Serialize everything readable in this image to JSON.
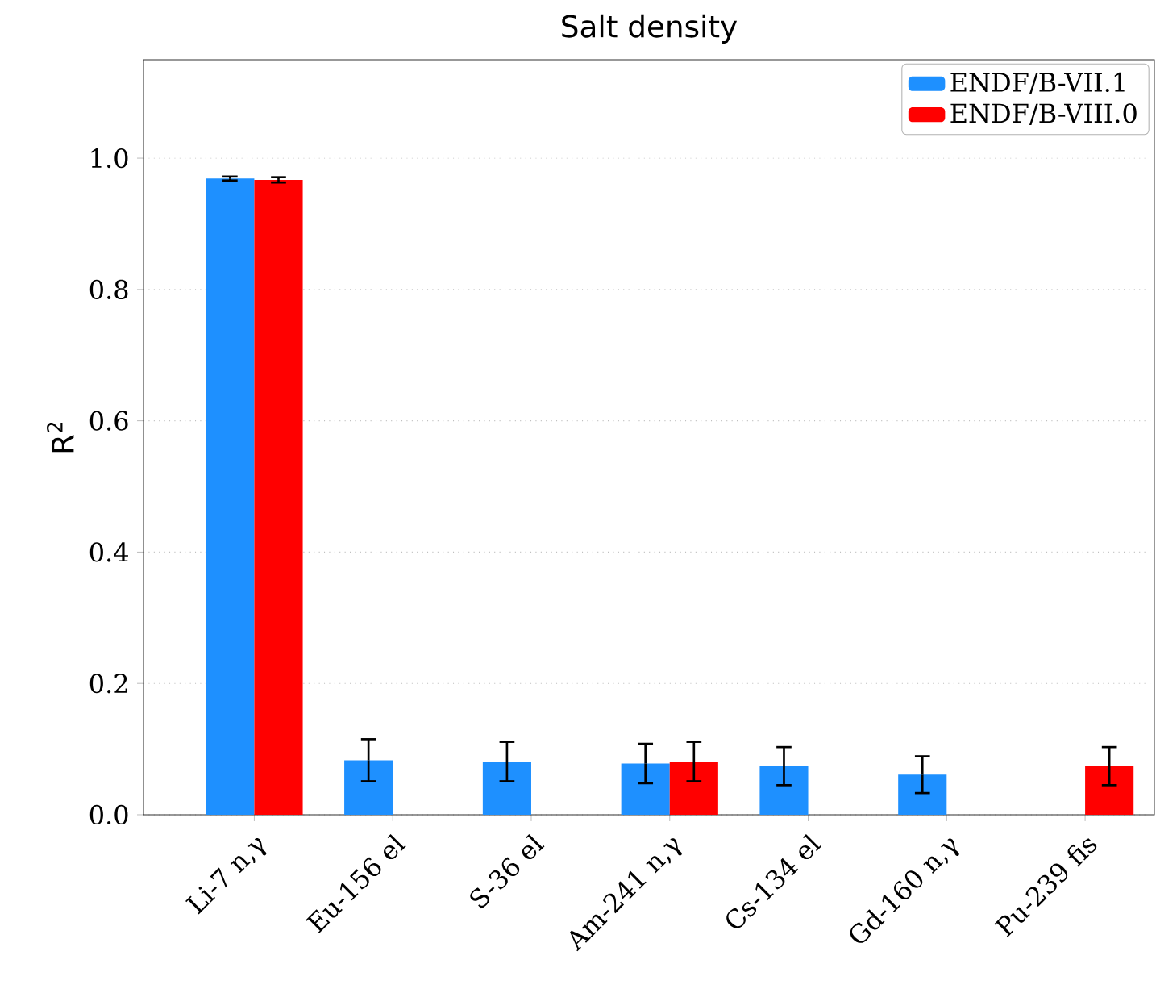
{
  "chart_data": {
    "type": "bar",
    "title": "Salt density",
    "ylabel": "R$^{2}$",
    "categories": [
      "Li-7 n,γ",
      "Eu-156 el",
      "S-36 el",
      "Am-241 n,γ",
      "Cs-134 el",
      "Gd-160 n,γ",
      "Pu-239 fis"
    ],
    "series": [
      {
        "name": "ENDF/B-VII.1",
        "color": "#1e90ff",
        "values": [
          0.969,
          0.083,
          0.081,
          0.078,
          0.074,
          0.061,
          0
        ],
        "errors": [
          0.003,
          0.032,
          0.03,
          0.03,
          0.029,
          0.028,
          null
        ]
      },
      {
        "name": "ENDF/B-VIII.0",
        "color": "#ff0000",
        "values": [
          0.967,
          0,
          0,
          0.081,
          0,
          0,
          0.074
        ],
        "errors": [
          0.004,
          null,
          null,
          0.03,
          null,
          null,
          0.029
        ]
      }
    ],
    "ylim": [
      0,
      1.15
    ],
    "yticks": [
      {
        "value": 0,
        "label": "0.0"
      },
      {
        "value": 0.2,
        "label": "0.2"
      },
      {
        "value": 0.4,
        "label": "0.4"
      },
      {
        "value": 0.6,
        "label": "0.6"
      },
      {
        "value": 0.8,
        "label": "0.8"
      },
      {
        "value": 1.0,
        "label": "1.0"
      }
    ],
    "grid": "y",
    "legend": "top right"
  }
}
